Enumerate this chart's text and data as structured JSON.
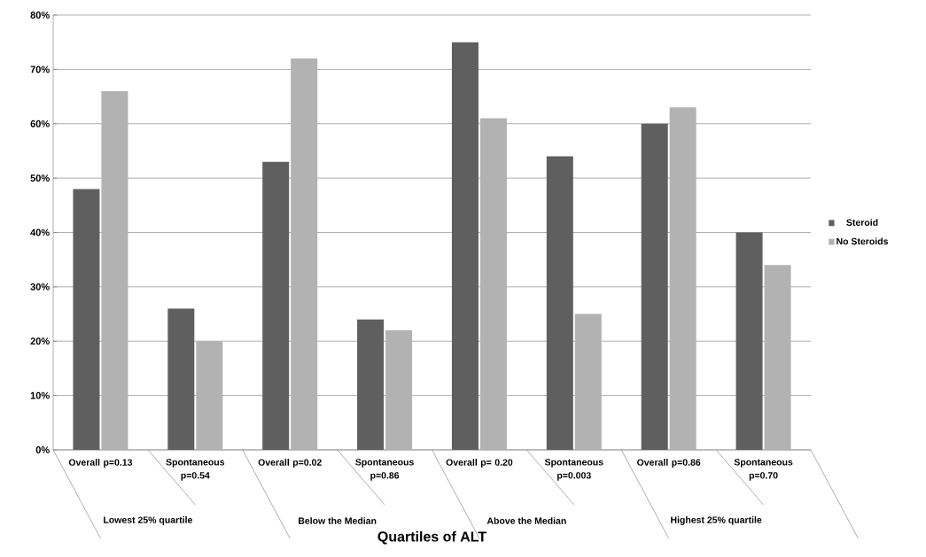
{
  "chart_data": {
    "type": "bar",
    "xlabel": "Quartiles of ALT",
    "categories": [
      "Overall  p=0.13",
      "Spontaneous p=0.54",
      "Overall p=0.02",
      "Spontaneous p=0.86",
      "Overall p= 0.20",
      "Spontaneous p=0.003",
      "Overall p=0.86",
      "Spontaneous p=0.70"
    ],
    "series": [
      {
        "name": "Steroid",
        "color": "#5f5f5f",
        "values": [
          48,
          26,
          53,
          24,
          75,
          54,
          60,
          40
        ]
      },
      {
        "name": "No Steroids",
        "color": "#b2b2b2",
        "values": [
          66,
          20,
          72,
          22,
          61,
          25,
          63,
          34
        ]
      }
    ],
    "ylim": [
      0,
      80
    ],
    "yticks": [
      {
        "value": 0,
        "label": "0%"
      },
      {
        "value": 10,
        "label": "10%"
      },
      {
        "value": 20,
        "label": "20%"
      },
      {
        "value": 30,
        "label": "30%"
      },
      {
        "value": 40,
        "label": "40%"
      },
      {
        "value": 50,
        "label": "50%"
      },
      {
        "value": 60,
        "label": "60%"
      },
      {
        "value": 70,
        "label": "70%"
      },
      {
        "value": 80,
        "label": "80%"
      }
    ],
    "grid": "y",
    "legend": "right",
    "annotations": [
      "Lowest 25% quartile",
      "Below the Median",
      "Above the Median",
      "Highest 25% quartile"
    ]
  }
}
